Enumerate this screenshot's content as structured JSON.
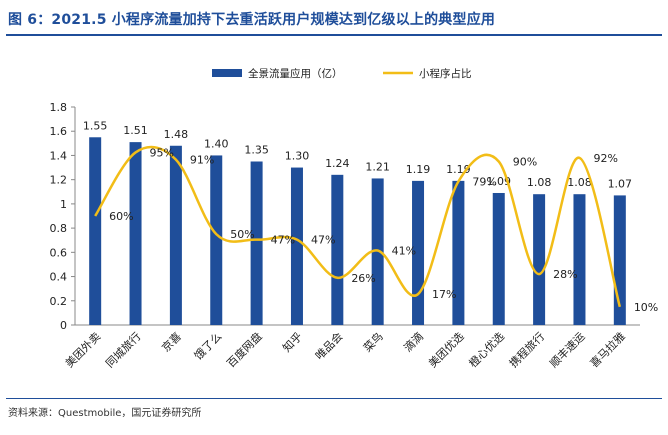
{
  "title": "图 6：2021.5 小程序流量加持下去重活跃用户规模达到亿级以上的典型应用",
  "source": "资料来源：Questmobile，国元证券研究所",
  "colors": {
    "bar": "#1f4e9a",
    "line": "#f2bd17",
    "title": "#1f4e9a"
  },
  "chart_data": {
    "type": "bar",
    "categories": [
      "美团外卖",
      "同城旅行",
      "京喜",
      "饿了么",
      "百度网盘",
      "知乎",
      "唯品会",
      "菜鸟",
      "滴滴",
      "美团优选",
      "橙心优选",
      "携程旅行",
      "顺丰速运",
      "喜马拉雅"
    ],
    "series": [
      {
        "name": "全景流量应用（亿）",
        "type": "bar",
        "axis": "left",
        "values": [
          1.55,
          1.51,
          1.48,
          1.4,
          1.35,
          1.3,
          1.24,
          1.21,
          1.19,
          1.19,
          1.09,
          1.08,
          1.08,
          1.07
        ],
        "labels": [
          "1.55",
          "1.51",
          "1.48",
          "1.40",
          "1.35",
          "1.30",
          "1.24",
          "1.21",
          "1.19",
          "1.19",
          "1.09",
          "1.08",
          "1.08",
          "1.07"
        ]
      },
      {
        "name": "小程序占比",
        "type": "line",
        "smooth": true,
        "axis": "hidden",
        "values": [
          60,
          95,
          91,
          50,
          47,
          47,
          26,
          41,
          17,
          79,
          90,
          28,
          92,
          10
        ],
        "labels": [
          "60%",
          "95%",
          "91%",
          "50%",
          "47%",
          "47%",
          "26%",
          "41%",
          "17%",
          "79%",
          "90%",
          "28%",
          "92%",
          "10%"
        ]
      }
    ],
    "y_ticks": [
      "0",
      "0.2",
      "0.4",
      "0.6",
      "0.8",
      "1",
      "1.2",
      "1.4",
      "1.6",
      "1.8"
    ],
    "ylim": [
      0,
      1.8
    ],
    "secondary_ylim": [
      0,
      120
    ],
    "legend_position": "top-center",
    "grid": false
  }
}
